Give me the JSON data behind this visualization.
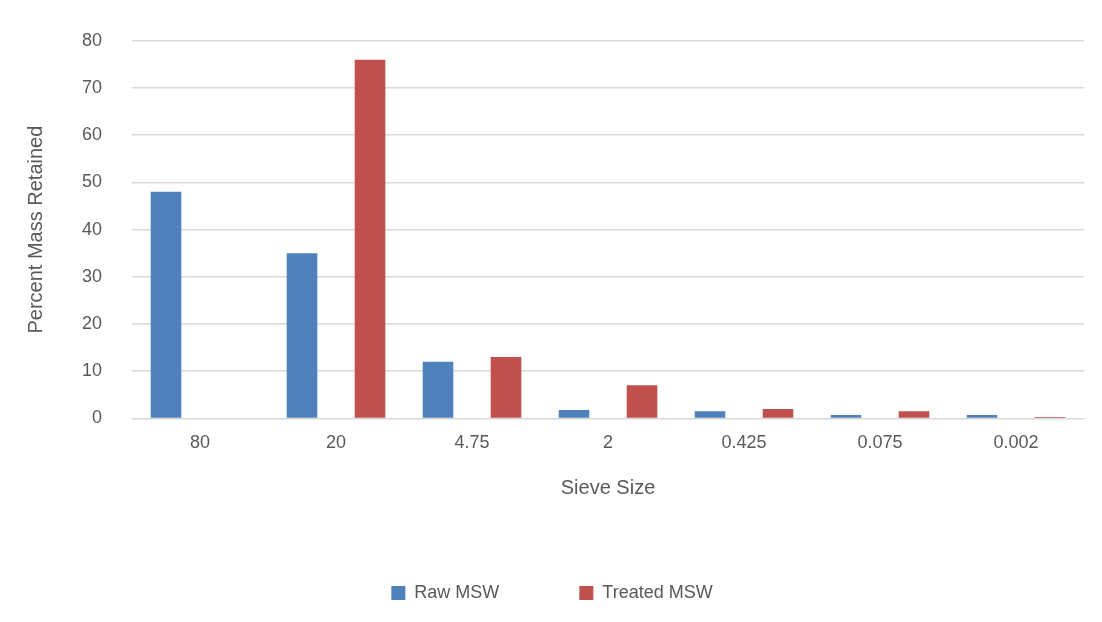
{
  "chart_data": {
    "type": "bar",
    "xlabel": "Sieve Size",
    "ylabel": "Percent Mass Retained",
    "categories": [
      "80",
      "20",
      "4.75",
      "2",
      "0.425",
      "0.075",
      "0.002"
    ],
    "series": [
      {
        "name": "Raw MSW",
        "color": "#4f81bd",
        "values": [
          48,
          35,
          12,
          1.8,
          1.5,
          0.7,
          0.7
        ]
      },
      {
        "name": "Treated MSW",
        "color": "#c0504d",
        "values": [
          0,
          76,
          13,
          7,
          2,
          1.5,
          0.3
        ]
      }
    ],
    "ylim": [
      0,
      80
    ],
    "yticks": [
      0,
      10,
      20,
      30,
      40,
      50,
      60,
      70,
      80
    ],
    "grid": "y",
    "legend": "bottom"
  }
}
